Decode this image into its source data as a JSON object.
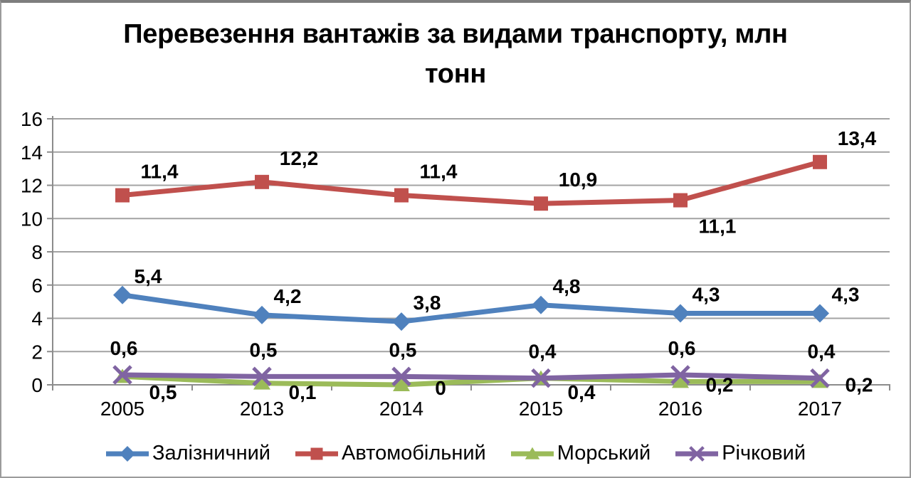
{
  "title": "Перевезення вантажів за видами транспорту, млн тонн",
  "chart_data": {
    "type": "line",
    "categories": [
      "2005",
      "2013",
      "2014",
      "2015",
      "2016",
      "2017"
    ],
    "series": [
      {
        "name": "Залізничний",
        "color": "#4F81BD",
        "marker": "diamond",
        "values": [
          5.4,
          4.2,
          3.8,
          4.8,
          4.3,
          4.3
        ],
        "labels": [
          "5,4",
          "4,2",
          "3,8",
          "4,8",
          "4,3",
          "4,3"
        ],
        "label_pos": [
          "above",
          "above",
          "above",
          "above",
          "above",
          "above"
        ]
      },
      {
        "name": "Автомобільний",
        "color": "#C0504D",
        "marker": "square",
        "values": [
          11.4,
          12.2,
          11.4,
          10.9,
          11.1,
          13.4
        ],
        "labels": [
          "11,4",
          "12,2",
          "11,4",
          "10,9",
          "11,1",
          "13,4"
        ],
        "label_pos": [
          "above",
          "above",
          "above",
          "above",
          "below",
          "above"
        ]
      },
      {
        "name": "Морський",
        "color": "#9BBB59",
        "marker": "triangle",
        "values": [
          0.5,
          0.1,
          0,
          0.4,
          0.2,
          0.2
        ],
        "labels": [
          "0,5",
          "0,1",
          "0",
          "0,4",
          "0,2",
          "0,2"
        ],
        "label_pos": [
          "below",
          "below",
          "right",
          "below",
          "right",
          "right"
        ]
      },
      {
        "name": "Річковий",
        "color": "#8064A2",
        "marker": "x",
        "values": [
          0.6,
          0.5,
          0.5,
          0.4,
          0.6,
          0.4
        ],
        "labels": [
          "0,6",
          "0,5",
          "0,5",
          "0,4",
          "0,6",
          "0,4"
        ],
        "label_pos": [
          "above",
          "above",
          "above",
          "above",
          "above",
          "above"
        ]
      }
    ],
    "xlabel": "",
    "ylabel": "",
    "ylim": [
      0,
      16
    ],
    "ytick_labels": [
      "0",
      "2",
      "4",
      "6",
      "8",
      "10",
      "12",
      "14",
      "16"
    ],
    "grid": true,
    "legend_position": "bottom",
    "colors": {
      "gridline": "#A3A3A3",
      "axis": "#8C8C8C",
      "text": "#000000"
    }
  }
}
